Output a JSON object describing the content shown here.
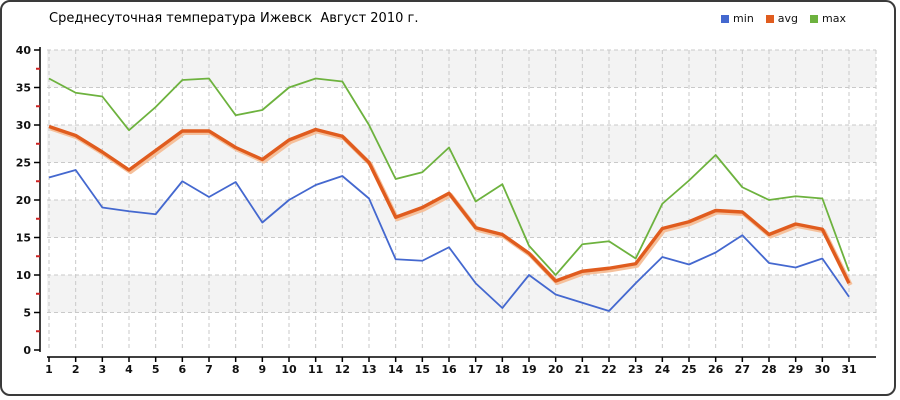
{
  "title": "Среднесуточная температура Ижевск  Август 2010 г.",
  "chart_data": {
    "type": "line",
    "title": "Среднесуточная температура Ижевск  Август 2010 г.",
    "xlabel": "",
    "ylabel": "",
    "x": [
      1,
      2,
      3,
      4,
      5,
      6,
      7,
      8,
      9,
      10,
      11,
      12,
      13,
      14,
      15,
      16,
      17,
      18,
      19,
      20,
      21,
      22,
      23,
      24,
      25,
      26,
      27,
      28,
      29,
      30,
      31
    ],
    "ylim": [
      0,
      40
    ],
    "y_major_step": 5,
    "y_minor_step": 2.5,
    "grid": "dashed both axes",
    "band_fill_ranges": [
      [
        5,
        10
      ],
      [
        15,
        20
      ],
      [
        25,
        30
      ],
      [
        35,
        40
      ]
    ],
    "legend_position": "top-right",
    "series": [
      {
        "name": "min",
        "color": "#4468cf",
        "values": [
          23,
          24,
          19,
          18.5,
          18.1,
          22.5,
          20.4,
          22.4,
          17,
          20,
          22,
          23.2,
          20.2,
          12.1,
          11.9,
          13.7,
          8.9,
          5.6,
          10,
          7.4,
          6.3,
          5.2,
          8.9,
          12.4,
          11.4,
          13,
          15.3,
          11.6,
          11,
          12.2,
          7.1
        ]
      },
      {
        "name": "avg",
        "color": "#e05c1e",
        "values": [
          29.8,
          28.6,
          26.4,
          24,
          26.6,
          29.2,
          29.2,
          27,
          25.4,
          28,
          29.4,
          28.5,
          25,
          17.7,
          19,
          20.9,
          16.3,
          15.4,
          12.9,
          9.2,
          10.5,
          10.9,
          11.5,
          16.2,
          17.1,
          18.6,
          18.4,
          15.4,
          16.8,
          16.1,
          8.9
        ]
      },
      {
        "name": "max",
        "color": "#6db23e",
        "values": [
          36.2,
          34.3,
          33.8,
          29.3,
          32.4,
          36,
          36.2,
          31.3,
          32,
          35,
          36.2,
          35.8,
          30,
          22.8,
          23.7,
          27,
          19.8,
          22.1,
          13.9,
          10,
          14.1,
          14.5,
          12.2,
          19.5,
          22.6,
          26,
          21.7,
          20,
          20.5,
          20.2,
          10.5
        ]
      }
    ],
    "colors": {
      "band_fill": "#f3f3f3",
      "gridline": "#c9c9c9",
      "axis": "#000000",
      "minor_tick": "#cc2222",
      "avg_shadow": "#f5c09b",
      "tick_label": "#111111"
    }
  }
}
